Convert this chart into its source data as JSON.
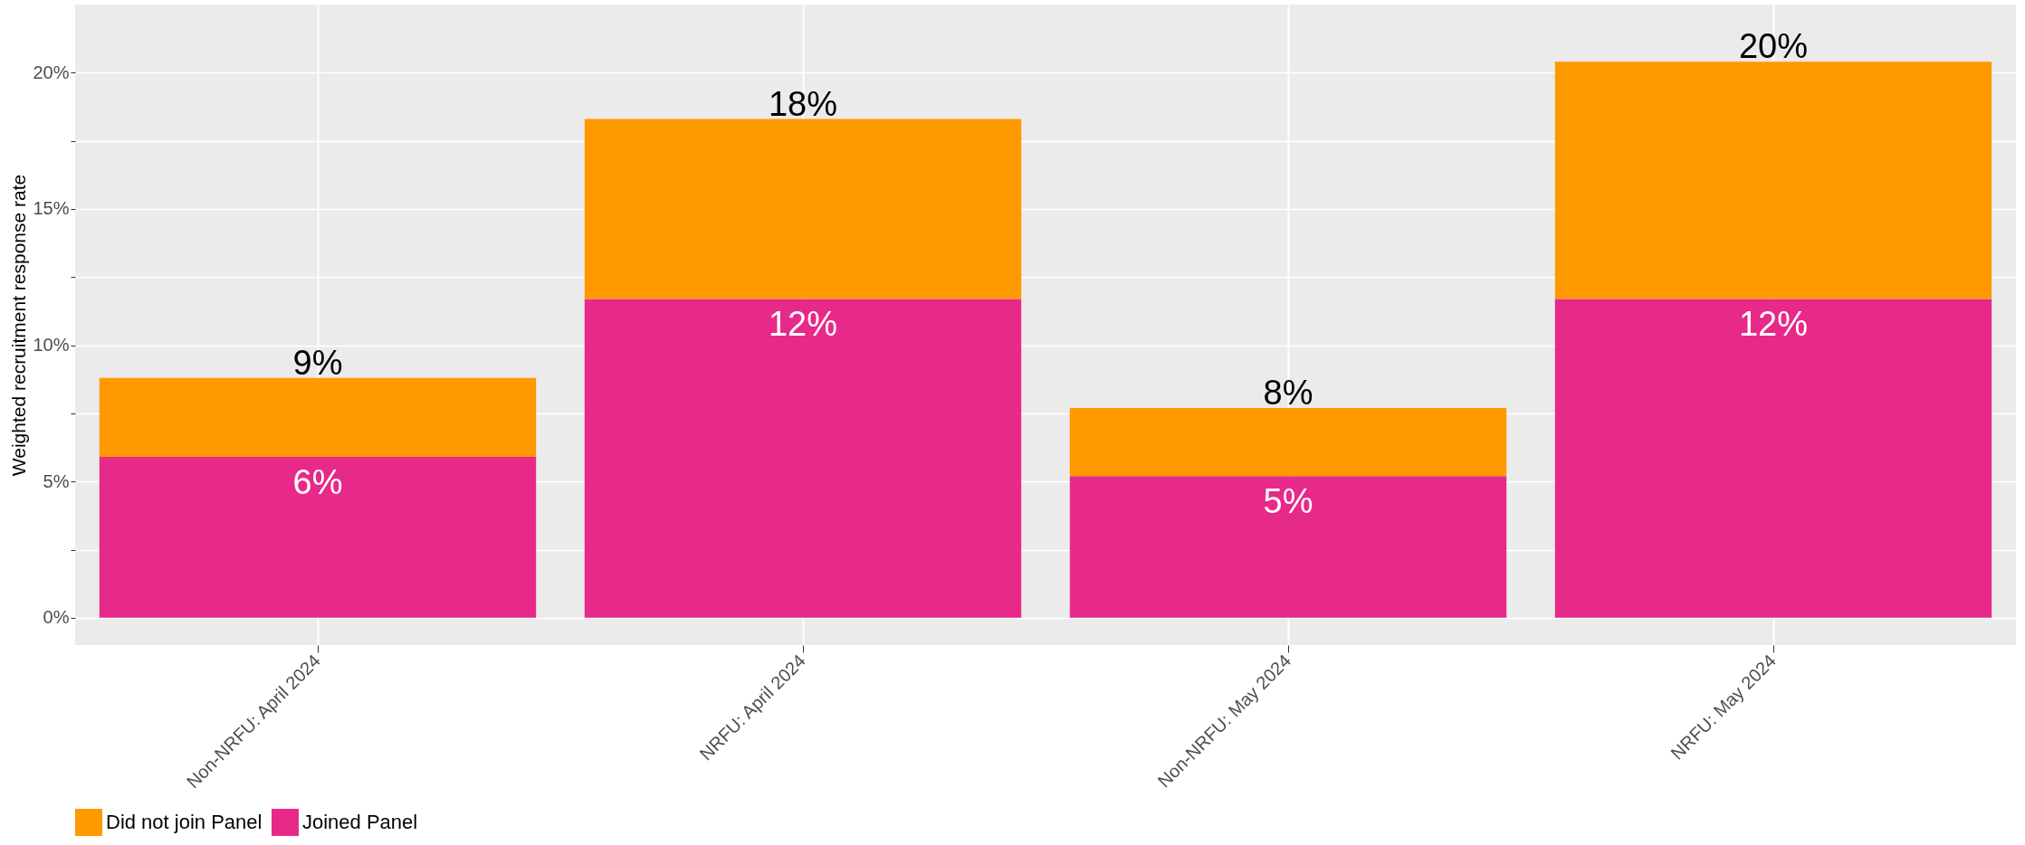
{
  "chart_data": {
    "type": "bar",
    "ylabel": "Weighted recruitment response rate",
    "categories": [
      "Non-NRFU: April 2024",
      "NRFU: April 2024",
      "Non-NRFU: May 2024",
      "NRFU: May 2024"
    ],
    "stacked": true,
    "series": [
      {
        "name": "Joined Panel",
        "color": "#e7298a",
        "values": [
          5.9,
          11.7,
          5.2,
          11.7
        ],
        "value_labels": [
          "6%",
          "12%",
          "5%",
          "12%"
        ]
      },
      {
        "name": "Did not join Panel",
        "color": "#ff9900",
        "values": [
          2.9,
          6.6,
          2.5,
          8.7
        ]
      }
    ],
    "totals": [
      "9%",
      "18%",
      "8%",
      "20%"
    ],
    "ylim": [
      -1.0,
      22.5
    ],
    "yticks": [
      {
        "value": 0,
        "label": "0%"
      },
      {
        "value": 2.5,
        "label": null
      },
      {
        "value": 5,
        "label": "5%"
      },
      {
        "value": 7.5,
        "label": null
      },
      {
        "value": 10,
        "label": "10%"
      },
      {
        "value": 12.5,
        "label": null
      },
      {
        "value": 15,
        "label": "15%"
      },
      {
        "value": 17.5,
        "label": null
      },
      {
        "value": 20,
        "label": "20%"
      }
    ],
    "grid": true,
    "legend": "bottom"
  }
}
